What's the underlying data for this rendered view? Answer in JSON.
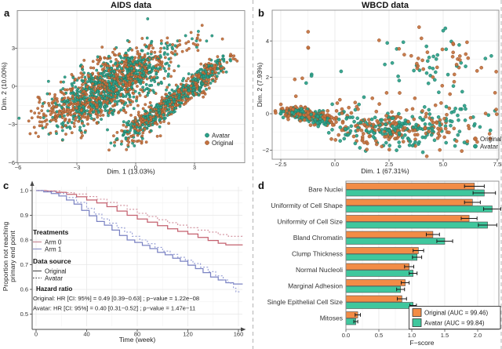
{
  "colors": {
    "avatar_point": "#2ba189",
    "avatar_point_stroke": "#156b59",
    "original_point": "#c4723f",
    "original_point_stroke": "#8a4a22",
    "avatar_bar": "#3fc79d",
    "original_bar": "#f28c46",
    "arm0_line": "#c4616f",
    "arm0_avatar_line": "#d08e9b",
    "arm1_line": "#7b83c3",
    "arm1_avatar_line": "#949cd4",
    "arm0_legend": "#c98e99",
    "arm1_legend": "#939ac9",
    "datasource_legend": "#555555",
    "grid_major": "#e7e7e7",
    "grid_minor": "#f3f3f3",
    "panel_border": "#8a8a8a",
    "divider": "#b3b3b3",
    "error_bar": "#1a1a1a"
  },
  "chart_data": [
    {
      "id": "a",
      "letter": "a",
      "type": "scatter",
      "title": "AIDS data",
      "xlabel": "Dim. 1 (13.03%)",
      "ylabel": "Dim. 2 (10.00%)",
      "xlim": [
        -6.1,
        5.55
      ],
      "ylim": [
        -6.05,
        5.9
      ],
      "xticks": [
        {
          "v": -6,
          "label": "−6"
        },
        {
          "v": -3,
          "label": "−3"
        },
        {
          "v": 0,
          "label": "0"
        },
        {
          "v": 3,
          "label": "3"
        }
      ],
      "yticks": [
        {
          "v": -6,
          "label": "−6"
        },
        {
          "v": -3,
          "label": "−3"
        },
        {
          "v": 0,
          "label": "0"
        },
        {
          "v": 3,
          "label": "3"
        }
      ],
      "grid": true,
      "legend_position": "bottom-right-inside",
      "legend": [
        {
          "label": "Avatar",
          "color": "#2ba189"
        },
        {
          "label": "Original",
          "color": "#c4723f"
        }
      ],
      "series": [
        {
          "name": "Original",
          "color": "#c4723f",
          "stroke": "#8a4a22",
          "seed": 101,
          "clusters": [
            {
              "cx": -2.2,
              "cy": -1.0,
              "angle": 42,
              "sd1": 1.35,
              "sd2": 0.85,
              "n": 340
            },
            {
              "cx": -0.3,
              "cy": 1.2,
              "angle": 42,
              "sd1": 1.3,
              "sd2": 0.9,
              "n": 320
            },
            {
              "cx": 0.8,
              "cy": -2.4,
              "angle": 45,
              "sd1": 1.05,
              "sd2": 0.33,
              "n": 165
            },
            {
              "cx": 2.6,
              "cy": -0.4,
              "angle": 45,
              "sd1": 1.05,
              "sd2": 0.3,
              "n": 175
            },
            {
              "cx": 3.9,
              "cy": 1.4,
              "angle": 45,
              "sd1": 0.75,
              "sd2": 0.28,
              "n": 70
            },
            {
              "cx": -3.9,
              "cy": -2.2,
              "angle": 40,
              "sd1": 1.05,
              "sd2": 0.8,
              "n": 60
            },
            {
              "cx": 2.7,
              "cy": 3.4,
              "angle": 20,
              "sd1": 0.9,
              "sd2": 0.5,
              "n": 22
            },
            {
              "cx": 0.0,
              "cy": -4.3,
              "angle": 30,
              "sd1": 0.6,
              "sd2": 0.4,
              "n": 22
            }
          ]
        },
        {
          "name": "Avatar",
          "color": "#2ba189",
          "stroke": "#156b59",
          "seed": 202,
          "clusters": [
            {
              "cx": -2.1,
              "cy": -0.9,
              "angle": 42,
              "sd1": 1.3,
              "sd2": 0.8,
              "n": 340
            },
            {
              "cx": -0.3,
              "cy": 1.1,
              "angle": 42,
              "sd1": 1.25,
              "sd2": 0.85,
              "n": 320
            },
            {
              "cx": 0.8,
              "cy": -2.4,
              "angle": 45,
              "sd1": 1.0,
              "sd2": 0.3,
              "n": 165
            },
            {
              "cx": 2.6,
              "cy": -0.4,
              "angle": 45,
              "sd1": 1.0,
              "sd2": 0.28,
              "n": 175
            },
            {
              "cx": 3.9,
              "cy": 1.4,
              "angle": 45,
              "sd1": 0.7,
              "sd2": 0.26,
              "n": 65
            },
            {
              "cx": -3.7,
              "cy": -2.1,
              "angle": 40,
              "sd1": 0.9,
              "sd2": 0.7,
              "n": 28
            },
            {
              "cx": 2.7,
              "cy": 3.3,
              "angle": 20,
              "sd1": 0.8,
              "sd2": 0.45,
              "n": 12
            },
            {
              "cx": 0.0,
              "cy": -4.2,
              "angle": 30,
              "sd1": 0.55,
              "sd2": 0.35,
              "n": 12
            }
          ]
        }
      ]
    },
    {
      "id": "b",
      "letter": "b",
      "type": "scatter",
      "title": "WBCD data",
      "xlabel": "Dim. 1 (67.31%)",
      "ylabel": "Dim. 2 (7.93%)",
      "xlim": [
        -2.85,
        7.55
      ],
      "ylim": [
        -2.45,
        5.6
      ],
      "xticks": [
        {
          "v": -2.5,
          "label": "−2.5"
        },
        {
          "v": 0,
          "label": "0.0"
        },
        {
          "v": 2.5,
          "label": "2.5"
        },
        {
          "v": 5,
          "label": "5.0"
        },
        {
          "v": 7.5,
          "label": "7.5"
        }
      ],
      "yticks": [
        {
          "v": -2,
          "label": "−2"
        },
        {
          "v": 0,
          "label": "0"
        },
        {
          "v": 2,
          "label": "2"
        },
        {
          "v": 4,
          "label": "4"
        }
      ],
      "grid": true,
      "legend_position": "bottom-right-inside",
      "legend": [
        {
          "label": "Original",
          "color": "#c4723f"
        },
        {
          "label": "Avatar",
          "color": "#2ba189"
        }
      ],
      "series": [
        {
          "name": "Original",
          "color": "#c4723f",
          "stroke": "#8a4a22",
          "seed": 303,
          "clusters": [
            {
              "cx": -1.55,
              "cy": 0.02,
              "angle": -10,
              "sd1": 0.52,
              "sd2": 0.16,
              "n": 140
            },
            {
              "cx": -0.7,
              "cy": -0.25,
              "angle": -15,
              "sd1": 0.35,
              "sd2": 0.18,
              "n": 30
            },
            {
              "cx": 2.3,
              "cy": -0.85,
              "angle": 0,
              "sd1": 1.25,
              "sd2": 0.5,
              "n": 120
            },
            {
              "cx": 4.9,
              "cy": -0.7,
              "angle": 0,
              "sd1": 1.2,
              "sd2": 0.65,
              "n": 55
            },
            {
              "cx": 4.7,
              "cy": 2.9,
              "angle": 0,
              "sd1": 1.5,
              "sd2": 0.95,
              "n": 42
            },
            {
              "cx": -1.35,
              "cy": 2.7,
              "angle": 0,
              "sd1": 0.2,
              "sd2": 1.1,
              "n": 6
            },
            {
              "cx": 0.6,
              "cy": 0.1,
              "angle": 0,
              "sd1": 0.6,
              "sd2": 0.55,
              "n": 18
            }
          ]
        },
        {
          "name": "Avatar",
          "color": "#2ba189",
          "stroke": "#156b59",
          "seed": 404,
          "clusters": [
            {
              "cx": -1.5,
              "cy": -0.05,
              "angle": -10,
              "sd1": 0.5,
              "sd2": 0.16,
              "n": 140
            },
            {
              "cx": -0.7,
              "cy": -0.3,
              "angle": -15,
              "sd1": 0.35,
              "sd2": 0.18,
              "n": 30
            },
            {
              "cx": 2.4,
              "cy": -0.9,
              "angle": 0,
              "sd1": 1.25,
              "sd2": 0.5,
              "n": 120
            },
            {
              "cx": 4.9,
              "cy": -0.6,
              "angle": 0,
              "sd1": 1.2,
              "sd2": 0.6,
              "n": 55
            },
            {
              "cx": 4.6,
              "cy": 2.8,
              "angle": 0,
              "sd1": 1.5,
              "sd2": 0.95,
              "n": 40
            },
            {
              "cx": -1.3,
              "cy": 2.2,
              "angle": 0,
              "sd1": 0.2,
              "sd2": 0.8,
              "n": 2
            },
            {
              "cx": 0.7,
              "cy": 0.0,
              "angle": 0,
              "sd1": 0.6,
              "sd2": 0.5,
              "n": 18
            }
          ]
        }
      ]
    },
    {
      "id": "c",
      "letter": "c",
      "type": "line-step",
      "xlabel": "Time (week)",
      "ylabel": [
        "Proportion not reaching",
        "primary end point"
      ],
      "xlim": [
        0,
        163
      ],
      "ylim": [
        0.5,
        1.0
      ],
      "xticks": [
        {
          "v": 0,
          "label": "0"
        },
        {
          "v": 40,
          "label": "40"
        },
        {
          "v": 80,
          "label": "80"
        },
        {
          "v": 120,
          "label": "120"
        },
        {
          "v": 160,
          "label": "160"
        }
      ],
      "yticks": [
        {
          "v": 0.5,
          "label": "0.5"
        },
        {
          "v": 0.6,
          "label": "0.6"
        },
        {
          "v": 0.7,
          "label": "0.7"
        },
        {
          "v": 0.8,
          "label": "0.8"
        },
        {
          "v": 0.9,
          "label": "0.9"
        },
        {
          "v": 1.0,
          "label": "1.0"
        }
      ],
      "grid": true,
      "legend": {
        "treatments": {
          "header": "Treatments",
          "items": [
            {
              "label": "Arm 0",
              "color": "#c98e99"
            },
            {
              "label": "Arm 1",
              "color": "#939ac9"
            }
          ]
        },
        "data_source": {
          "header": "Data source",
          "items": [
            {
              "label": "Original",
              "dash": "solid"
            },
            {
              "label": "Avatar",
              "dash": "dotted"
            }
          ]
        },
        "hazard": {
          "header": "Hazard ratio",
          "lines": [
            "Original: HR [CI: 95%] = 0.49 [0.39−0.63] ; p−value = 1.22e−08",
            "Avatar: HR [CI: 95%] = 0.40 [0.31−0.52] ; p−value = 1.47e−11"
          ]
        }
      },
      "series": [
        {
          "name": "Arm 0 Original",
          "color": "#c4616f",
          "dash": "solid",
          "points": [
            [
              0,
              1
            ],
            [
              8,
              0.998
            ],
            [
              16,
              0.993
            ],
            [
              24,
              0.985
            ],
            [
              32,
              0.975
            ],
            [
              40,
              0.962
            ],
            [
              48,
              0.95
            ],
            [
              56,
              0.935
            ],
            [
              64,
              0.917
            ],
            [
              72,
              0.9
            ],
            [
              80,
              0.885
            ],
            [
              88,
              0.872
            ],
            [
              96,
              0.858
            ],
            [
              104,
              0.845
            ],
            [
              112,
              0.835
            ],
            [
              120,
              0.824
            ],
            [
              128,
              0.81
            ],
            [
              136,
              0.798
            ],
            [
              144,
              0.787
            ],
            [
              150,
              0.78
            ],
            [
              163,
              0.778
            ]
          ]
        },
        {
          "name": "Arm 0 Avatar",
          "color": "#d08e9b",
          "dash": "dotted",
          "points": [
            [
              0,
              1
            ],
            [
              10,
              0.998
            ],
            [
              20,
              0.992
            ],
            [
              30,
              0.986
            ],
            [
              40,
              0.976
            ],
            [
              48,
              0.965
            ],
            [
              56,
              0.952
            ],
            [
              64,
              0.94
            ],
            [
              72,
              0.924
            ],
            [
              80,
              0.908
            ],
            [
              88,
              0.895
            ],
            [
              96,
              0.882
            ],
            [
              104,
              0.87
            ],
            [
              112,
              0.86
            ],
            [
              120,
              0.85
            ],
            [
              128,
              0.84
            ],
            [
              136,
              0.832
            ],
            [
              144,
              0.822
            ],
            [
              152,
              0.815
            ],
            [
              163,
              0.812
            ]
          ]
        },
        {
          "name": "Arm 1 Original",
          "color": "#7b83c3",
          "dash": "solid",
          "points": [
            [
              0,
              1
            ],
            [
              6,
              0.995
            ],
            [
              12,
              0.988
            ],
            [
              18,
              0.978
            ],
            [
              24,
              0.962
            ],
            [
              30,
              0.945
            ],
            [
              36,
              0.92
            ],
            [
              42,
              0.898
            ],
            [
              48,
              0.875
            ],
            [
              54,
              0.86
            ],
            [
              60,
              0.84
            ],
            [
              66,
              0.818
            ],
            [
              72,
              0.8
            ],
            [
              78,
              0.79
            ],
            [
              84,
              0.778
            ],
            [
              90,
              0.765
            ],
            [
              96,
              0.75
            ],
            [
              102,
              0.74
            ],
            [
              108,
              0.726
            ],
            [
              114,
              0.714
            ],
            [
              120,
              0.698
            ],
            [
              126,
              0.684
            ],
            [
              132,
              0.668
            ],
            [
              138,
              0.65
            ],
            [
              144,
              0.638
            ],
            [
              150,
              0.627
            ],
            [
              156,
              0.622
            ],
            [
              163,
              0.62
            ]
          ]
        },
        {
          "name": "Arm 1 Avatar",
          "color": "#949cd4",
          "dash": "dotted",
          "points": [
            [
              0,
              1
            ],
            [
              8,
              0.996
            ],
            [
              16,
              0.988
            ],
            [
              24,
              0.972
            ],
            [
              32,
              0.952
            ],
            [
              40,
              0.928
            ],
            [
              46,
              0.905
            ],
            [
              52,
              0.885
            ],
            [
              58,
              0.868
            ],
            [
              64,
              0.85
            ],
            [
              70,
              0.832
            ],
            [
              76,
              0.815
            ],
            [
              82,
              0.8
            ],
            [
              88,
              0.785
            ],
            [
              94,
              0.77
            ],
            [
              100,
              0.755
            ],
            [
              106,
              0.742
            ],
            [
              112,
              0.73
            ],
            [
              118,
              0.718
            ],
            [
              124,
              0.705
            ],
            [
              130,
              0.69
            ],
            [
              136,
              0.672
            ],
            [
              142,
              0.655
            ],
            [
              148,
              0.638
            ],
            [
              152,
              0.625
            ],
            [
              156,
              0.605
            ],
            [
              158,
              0.59
            ],
            [
              161,
              0.585
            ]
          ]
        }
      ]
    },
    {
      "id": "d",
      "letter": "d",
      "type": "bar-h",
      "xlabel": "F−score",
      "categories": [
        "Bare Nuclei",
        "Uniformity of Cell Shape",
        "Uniformity of Cell Size",
        "Bland Chromatin",
        "Clump Thickness",
        "Normal Nucleoli",
        "Marginal Adhesion",
        "Single Epithelial Cell Size",
        "Mitoses"
      ],
      "xticks": [
        {
          "v": 0,
          "label": "0.0"
        },
        {
          "v": 0.5,
          "label": "0.5"
        },
        {
          "v": 1.0,
          "label": "1.0"
        },
        {
          "v": 1.5,
          "label": "1.5"
        },
        {
          "v": 2.0,
          "label": "2.0"
        }
      ],
      "xlim": [
        0,
        2.32
      ],
      "grid": true,
      "series": [
        {
          "name": "Original (AUC = 99.46)",
          "color": "#f28c46",
          "values": [
            1.95,
            1.92,
            1.87,
            1.32,
            1.1,
            0.96,
            0.9,
            0.85,
            0.18
          ],
          "errors": [
            0.15,
            0.12,
            0.12,
            0.1,
            0.08,
            0.07,
            0.06,
            0.07,
            0.04
          ]
        },
        {
          "name": "Avatar (AUC = 99.84)",
          "color": "#3fc79d",
          "values": [
            2.1,
            2.22,
            2.15,
            1.5,
            1.08,
            1.02,
            0.83,
            1.02,
            0.15
          ],
          "errors": [
            0.17,
            0.13,
            0.14,
            0.12,
            0.07,
            0.06,
            0.06,
            0.05,
            0.03
          ]
        }
      ]
    }
  ]
}
